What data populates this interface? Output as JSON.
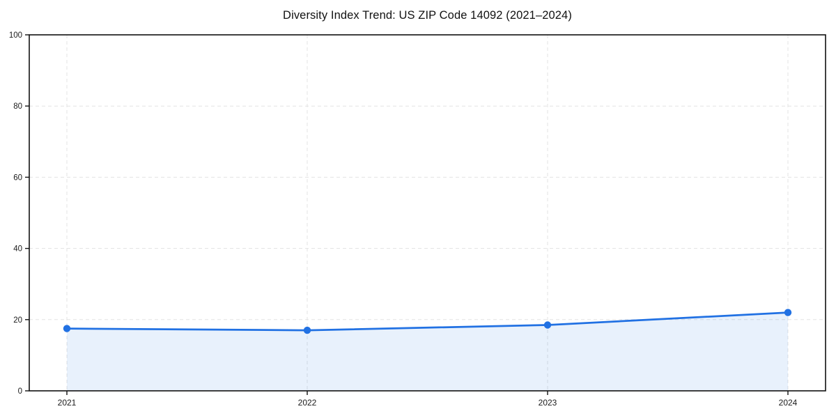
{
  "title": "Diversity Index Trend: US ZIP Code 14092 (2021–2024)",
  "chart_data": {
    "type": "area",
    "title": "Diversity Index Trend: US ZIP Code 14092 (2021–2024)",
    "categories": [
      "2021",
      "2022",
      "2023",
      "2024"
    ],
    "series": [
      {
        "name": "Diversity Index",
        "values": [
          17.5,
          17,
          18.5,
          22
        ]
      }
    ],
    "xlabel": "",
    "ylabel": "",
    "ylim": [
      0,
      100
    ],
    "yticks": [
      0,
      20,
      40,
      60,
      80,
      100
    ],
    "grid": true,
    "grid_style": "dashed",
    "legend_position": "none",
    "colors": {
      "line": "#2171e3",
      "marker": "#2171e3",
      "fill": "#2171e3",
      "fill_opacity": 0.1,
      "grid": "#e3e3e3",
      "spine": "#111111",
      "tick_text": "#1a1a1a",
      "background": "#ffffff"
    }
  }
}
